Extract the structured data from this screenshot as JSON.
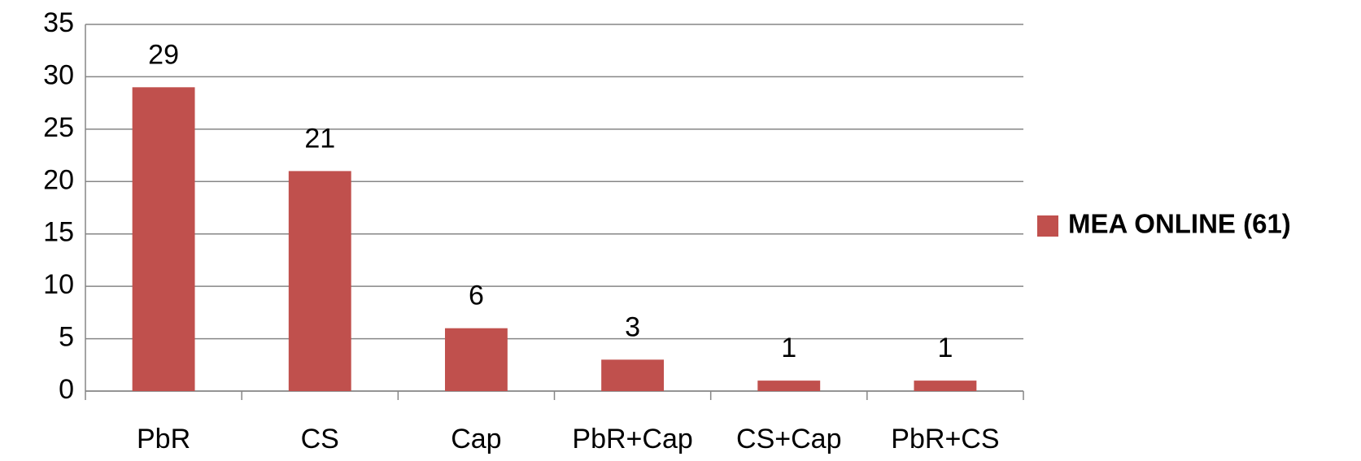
{
  "chart_data": {
    "type": "bar",
    "categories": [
      "PbR",
      "CS",
      "Cap",
      "PbR+Cap",
      "CS+Cap",
      "PbR+CS"
    ],
    "series": [
      {
        "name": "MEA ONLINE (61)",
        "color": "#c0504d",
        "values": [
          29,
          21,
          6,
          3,
          1,
          1
        ]
      }
    ],
    "ylim": [
      0,
      35
    ],
    "yticks": [
      0,
      5,
      10,
      15,
      20,
      25,
      30,
      35
    ],
    "grid": true,
    "legend": "right"
  }
}
